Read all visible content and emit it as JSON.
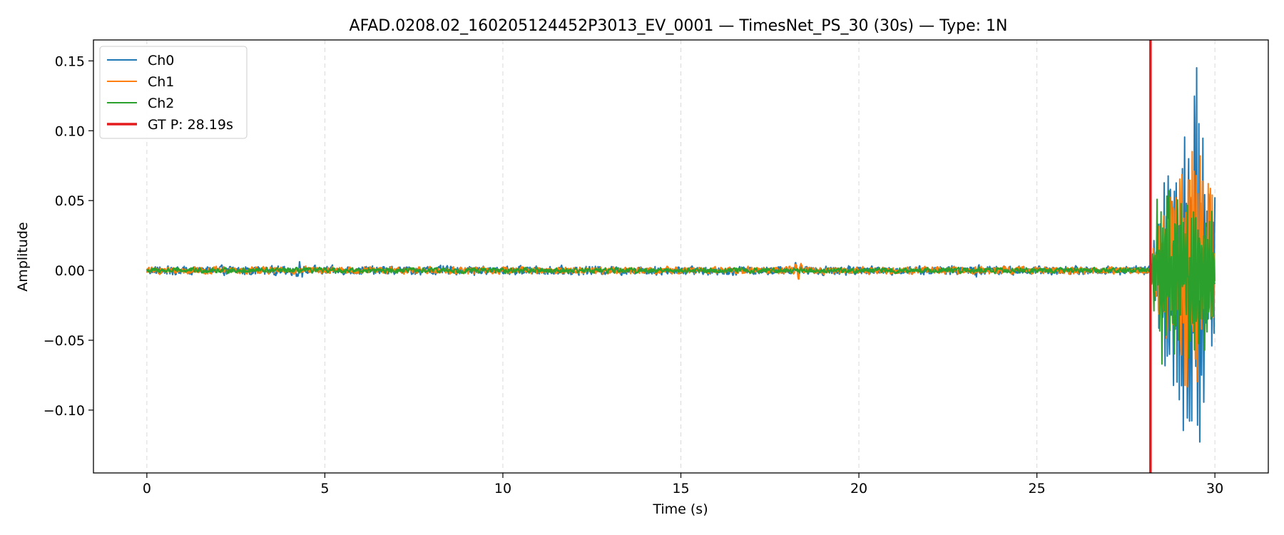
{
  "chart_data": {
    "type": "line",
    "title": "AFAD.0208.02_160205124452P3013_EV_0001 — TimesNet_PS_30 (30s) — Type: 1N",
    "xlabel": "Time (s)",
    "ylabel": "Amplitude",
    "xlim": [
      -1.5,
      31.5
    ],
    "ylim": [
      -0.145,
      0.165
    ],
    "x_ticks": [
      0,
      5,
      10,
      15,
      20,
      25,
      30
    ],
    "x_tick_labels": [
      "0",
      "5",
      "10",
      "15",
      "20",
      "25",
      "30"
    ],
    "y_ticks": [
      -0.1,
      -0.05,
      0.0,
      0.05,
      0.1,
      0.15
    ],
    "y_tick_labels": [
      "−0.10",
      "−0.05",
      "0.00",
      "0.05",
      "0.10",
      "0.15"
    ],
    "x_grid": true,
    "y_grid": false,
    "legend_position": "top-left",
    "duration_s": 30,
    "series": [
      {
        "name": "Ch0",
        "color": "#1f77b4",
        "noise_amplitude": 0.003,
        "notable_points": [
          [
            4.3,
            0.006
          ],
          [
            18.3,
            -0.005
          ],
          [
            23.3,
            0.009
          ],
          [
            23.3,
            -0.012
          ]
        ],
        "event_envelope": [
          [
            28.19,
            0.0
          ],
          [
            28.4,
            0.05
          ],
          [
            29.0,
            0.11
          ],
          [
            29.5,
            0.152
          ],
          [
            29.5,
            -0.133
          ],
          [
            30.0,
            0.07
          ]
        ]
      },
      {
        "name": "Ch1",
        "color": "#ff7f0e",
        "noise_amplitude": 0.0025,
        "notable_points": [
          [
            18.3,
            -0.007
          ]
        ],
        "event_envelope": [
          [
            28.19,
            0.0
          ],
          [
            28.4,
            0.04
          ],
          [
            29.0,
            0.08
          ],
          [
            29.4,
            0.1
          ],
          [
            29.6,
            -0.09
          ],
          [
            30.0,
            0.055
          ]
        ]
      },
      {
        "name": "Ch2",
        "color": "#2ca02c",
        "noise_amplitude": 0.0018,
        "notable_points": [],
        "event_envelope": [
          [
            28.19,
            0.0
          ],
          [
            28.4,
            0.07
          ],
          [
            29.0,
            0.07
          ],
          [
            29.4,
            0.07
          ],
          [
            29.6,
            -0.07
          ],
          [
            30.0,
            0.04
          ]
        ]
      }
    ],
    "vertical_lines": [
      {
        "name": "GT P: 28.19s",
        "x": 28.19,
        "color": "#e41a1c"
      }
    ]
  }
}
